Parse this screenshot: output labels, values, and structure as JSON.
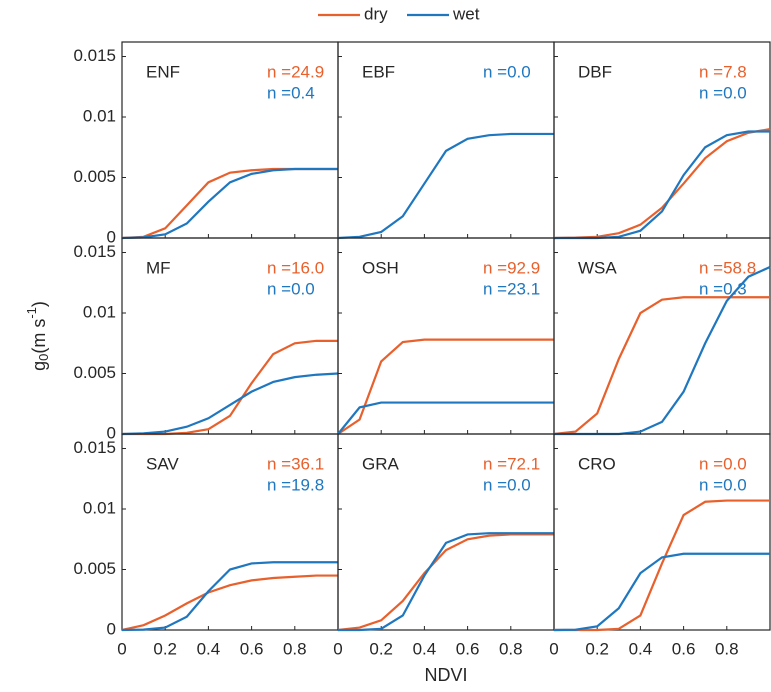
{
  "chart_data": [
    {
      "type": "line",
      "title": "ENF",
      "x": [
        0,
        0.1,
        0.2,
        0.3,
        0.4,
        0.5,
        0.6,
        0.7,
        0.8,
        0.9,
        1
      ],
      "xlim": [
        0,
        1
      ],
      "xticks": [
        0,
        0.2,
        0.4,
        0.6,
        0.8
      ],
      "ylim": [
        0,
        0.0162
      ],
      "yticks": [
        0,
        0.005,
        0.01,
        0.015
      ],
      "series": [
        {
          "name": "dry",
          "color": "#e8602c",
          "annotation": "n =24.9",
          "values": [
            0,
            0.0001,
            0.0008,
            0.0027,
            0.0046,
            0.0054,
            0.0056,
            0.0057,
            0.0057,
            0.0057,
            0.0057
          ]
        },
        {
          "name": "wet",
          "color": "#1f77bf",
          "annotation": "n =0.4",
          "values": [
            0,
            5e-05,
            0.0003,
            0.0012,
            0.003,
            0.0046,
            0.0053,
            0.0056,
            0.0057,
            0.0057,
            0.0057
          ]
        }
      ]
    },
    {
      "type": "line",
      "title": "EBF",
      "x": [
        0,
        0.1,
        0.2,
        0.3,
        0.4,
        0.5,
        0.6,
        0.7,
        0.8,
        0.9,
        1
      ],
      "xlim": [
        0,
        1
      ],
      "xticks": [
        0,
        0.2,
        0.4,
        0.6,
        0.8
      ],
      "ylim": [
        0,
        0.0162
      ],
      "yticks": [
        0,
        0.005,
        0.01,
        0.015
      ],
      "series": [
        {
          "color": "#1f77bf",
          "annotation": "n =0.0",
          "values": [
            0,
            0.0001,
            0.0005,
            0.0018,
            0.0045,
            0.0072,
            0.0082,
            0.0085,
            0.0086,
            0.0086,
            0.0086
          ]
        }
      ]
    },
    {
      "type": "line",
      "title": "DBF",
      "x": [
        0,
        0.1,
        0.2,
        0.3,
        0.4,
        0.5,
        0.6,
        0.7,
        0.8,
        0.9,
        1
      ],
      "xlim": [
        0,
        1
      ],
      "xticks": [
        0,
        0.2,
        0.4,
        0.6,
        0.8
      ],
      "ylim": [
        0,
        0.0162
      ],
      "yticks": [
        0,
        0.005,
        0.01,
        0.015
      ],
      "series": [
        {
          "color": "#e8602c",
          "annotation": "n =7.8",
          "values": [
            0,
            3e-05,
            0.0001,
            0.0004,
            0.0011,
            0.0025,
            0.0045,
            0.0066,
            0.008,
            0.0087,
            0.009
          ]
        },
        {
          "color": "#1f77bf",
          "annotation": "n =0.0",
          "values": [
            0,
            0,
            0,
            0.0001,
            0.0006,
            0.0022,
            0.0052,
            0.0075,
            0.0085,
            0.0088,
            0.0088
          ]
        }
      ]
    },
    {
      "type": "line",
      "title": "MF",
      "ylabel": [
        "g",
        "0",
        "(m s",
        "-1",
        ")"
      ],
      "x": [
        0,
        0.1,
        0.2,
        0.3,
        0.4,
        0.5,
        0.6,
        0.7,
        0.8,
        0.9,
        1
      ],
      "xlim": [
        0,
        1
      ],
      "xticks": [
        0,
        0.2,
        0.4,
        0.6,
        0.8
      ],
      "ylim": [
        0,
        0.0162
      ],
      "yticks": [
        0,
        0.005,
        0.01,
        0.015
      ],
      "series": [
        {
          "color": "#e8602c",
          "annotation": "n =16.0",
          "values": [
            0,
            0,
            0,
            0.0001,
            0.0004,
            0.0015,
            0.0042,
            0.0066,
            0.0075,
            0.0077,
            0.0077
          ]
        },
        {
          "color": "#1f77bf",
          "annotation": "n =0.0",
          "values": [
            0,
            5e-05,
            0.0002,
            0.0006,
            0.0013,
            0.0024,
            0.0035,
            0.0043,
            0.0047,
            0.0049,
            0.005
          ]
        }
      ]
    },
    {
      "type": "line",
      "title": "OSH",
      "x": [
        0,
        0.1,
        0.2,
        0.3,
        0.4,
        0.5,
        0.6,
        0.7,
        0.8,
        0.9,
        1
      ],
      "xlim": [
        0,
        1
      ],
      "xticks": [
        0,
        0.2,
        0.4,
        0.6,
        0.8
      ],
      "ylim": [
        0,
        0.0162
      ],
      "yticks": [
        0,
        0.005,
        0.01,
        0.015
      ],
      "series": [
        {
          "color": "#e8602c",
          "annotation": "n =92.9",
          "values": [
            0,
            0.0012,
            0.006,
            0.0076,
            0.0078,
            0.0078,
            0.0078,
            0.0078,
            0.0078,
            0.0078,
            0.0078
          ]
        },
        {
          "color": "#1f77bf",
          "annotation": "n =23.1",
          "values": [
            0,
            0.0022,
            0.0026,
            0.0026,
            0.0026,
            0.0026,
            0.0026,
            0.0026,
            0.0026,
            0.0026,
            0.0026
          ]
        }
      ]
    },
    {
      "type": "line",
      "title": "WSA",
      "x": [
        0,
        0.1,
        0.2,
        0.3,
        0.4,
        0.5,
        0.6,
        0.7,
        0.8,
        0.9,
        1
      ],
      "xlim": [
        0,
        1
      ],
      "xticks": [
        0,
        0.2,
        0.4,
        0.6,
        0.8
      ],
      "ylim": [
        0,
        0.0162
      ],
      "yticks": [
        0,
        0.005,
        0.01,
        0.015
      ],
      "series": [
        {
          "color": "#e8602c",
          "annotation": "n =58.8",
          "values": [
            0,
            0.0002,
            0.0017,
            0.0062,
            0.01,
            0.0111,
            0.0113,
            0.0113,
            0.0113,
            0.0113,
            0.0113
          ]
        },
        {
          "color": "#1f77bf",
          "annotation": "n =0.3",
          "values": [
            0,
            0,
            0,
            0,
            0.0002,
            0.001,
            0.0035,
            0.0075,
            0.011,
            0.013,
            0.0138
          ]
        }
      ]
    },
    {
      "type": "line",
      "title": "SAV",
      "x": [
        0,
        0.1,
        0.2,
        0.3,
        0.4,
        0.5,
        0.6,
        0.7,
        0.8,
        0.9,
        1
      ],
      "xlim": [
        0,
        1
      ],
      "xticks": [
        0,
        0.2,
        0.4,
        0.6,
        0.8
      ],
      "ylim": [
        0,
        0.0162
      ],
      "yticks": [
        0,
        0.005,
        0.01,
        0.015
      ],
      "series": [
        {
          "color": "#e8602c",
          "annotation": "n =36.1",
          "values": [
            0,
            0.0004,
            0.0012,
            0.0022,
            0.0031,
            0.0037,
            0.0041,
            0.0043,
            0.0044,
            0.0045,
            0.0045
          ]
        },
        {
          "color": "#1f77bf",
          "annotation": "n =19.8",
          "values": [
            0,
            3e-05,
            0.0002,
            0.0011,
            0.0032,
            0.005,
            0.0055,
            0.0056,
            0.0056,
            0.0056,
            0.0056
          ]
        }
      ]
    },
    {
      "type": "line",
      "title": "GRA",
      "xlabel": "NDVI",
      "x": [
        0,
        0.1,
        0.2,
        0.3,
        0.4,
        0.5,
        0.6,
        0.7,
        0.8,
        0.9,
        1
      ],
      "xlim": [
        0,
        1
      ],
      "xticks": [
        0,
        0.2,
        0.4,
        0.6,
        0.8
      ],
      "ylim": [
        0,
        0.0162
      ],
      "yticks": [
        0,
        0.005,
        0.01,
        0.015
      ],
      "series": [
        {
          "color": "#e8602c",
          "annotation": "n =72.1",
          "values": [
            0,
            0.0002,
            0.0008,
            0.0024,
            0.0047,
            0.0066,
            0.0075,
            0.0078,
            0.0079,
            0.0079,
            0.0079
          ]
        },
        {
          "color": "#1f77bf",
          "annotation": "n =0.0",
          "values": [
            0,
            0,
            0.0001,
            0.0012,
            0.0045,
            0.0072,
            0.0079,
            0.008,
            0.008,
            0.008,
            0.008
          ]
        }
      ]
    },
    {
      "type": "line",
      "title": "CRO",
      "x": [
        0,
        0.1,
        0.2,
        0.3,
        0.4,
        0.5,
        0.6,
        0.7,
        0.8,
        0.9,
        1
      ],
      "xlim": [
        0,
        1
      ],
      "xticks": [
        0,
        0.2,
        0.4,
        0.6,
        0.8
      ],
      "ylim": [
        0,
        0.0162
      ],
      "yticks": [
        0,
        0.005,
        0.01,
        0.015
      ],
      "series": [
        {
          "color": "#e8602c",
          "annotation": "n =0.0",
          "values": [
            0,
            0,
            0,
            0.0001,
            0.0012,
            0.0055,
            0.0095,
            0.0106,
            0.0107,
            0.0107,
            0.0107
          ]
        },
        {
          "color": "#1f77bf",
          "annotation": "n =0.0",
          "values": [
            0,
            2e-05,
            0.0003,
            0.0018,
            0.0047,
            0.006,
            0.0063,
            0.0063,
            0.0063,
            0.0063,
            0.0063
          ]
        }
      ]
    }
  ]
}
